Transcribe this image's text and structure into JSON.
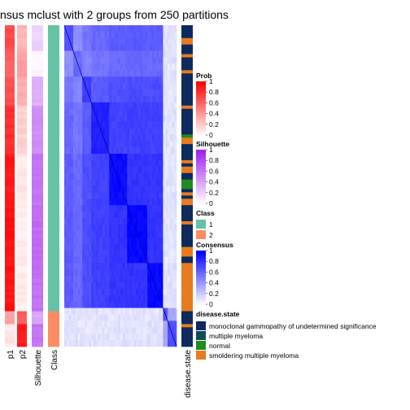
{
  "chart_data": {
    "type": "heatmap",
    "title": "nsus mclust with 2 groups from 250 partitions",
    "n_samples": 100,
    "class_sizes": [
      89,
      11
    ],
    "columns": [
      "p1",
      "p2",
      "Silhouette",
      "Class",
      "disease.state"
    ],
    "legends": {
      "prob": {
        "title": "Prob",
        "ticks": [
          "1",
          "0.8",
          "0.6",
          "0.4",
          "0.2",
          "0"
        ],
        "colors": [
          "#ff0000",
          "#ffffff"
        ]
      },
      "silhouette": {
        "title": "Silhouette",
        "ticks": [
          "1",
          "0.8",
          "0.6",
          "0.4",
          "0.2",
          "0"
        ],
        "colors": [
          "#a020f0",
          "#ffffff"
        ]
      },
      "class": {
        "title": "Class",
        "items": [
          {
            "label": "1",
            "color": "#66c2a5"
          },
          {
            "label": "2",
            "color": "#fc8d62"
          }
        ]
      },
      "consensus": {
        "title": "Consensus",
        "ticks": [
          "1",
          "0.8",
          "0.6",
          "0.4",
          "0.2",
          "0"
        ],
        "colors": [
          "#0000ff",
          "#ffffff"
        ]
      },
      "disease_state": {
        "title": "disease.state",
        "items": [
          {
            "label": "monoclonal gammopathy of undetermined significance",
            "color": "#0c2a5e"
          },
          {
            "label": "multiple myeloma",
            "color": "#114a5a"
          },
          {
            "label": "normal",
            "color": "#1e8c1e"
          },
          {
            "label": "smoldering multiple myeloma",
            "color": "#e87a1f"
          }
        ]
      }
    },
    "blocks": [
      {
        "start": 0,
        "end": 8,
        "p1": 0.7,
        "sil": 0.2
      },
      {
        "start": 8,
        "end": 16,
        "p1": 0.62,
        "sil": 0.05
      },
      {
        "start": 16,
        "end": 25,
        "p1": 0.68,
        "sil": 0.35
      },
      {
        "start": 25,
        "end": 40,
        "p1": 0.82,
        "sil": 0.5
      },
      {
        "start": 40,
        "end": 56,
        "p1": 0.9,
        "sil": 0.62
      },
      {
        "start": 56,
        "end": 75,
        "p1": 0.93,
        "sil": 0.66
      },
      {
        "start": 75,
        "end": 89,
        "p1": 0.92,
        "sil": 0.64
      },
      {
        "start": 89,
        "end": 93,
        "p1": 0.35,
        "sil": 0.4
      },
      {
        "start": 93,
        "end": 100,
        "p1": 0.1,
        "sil": 0.62
      }
    ],
    "disease_state_sequence": [
      0,
      0,
      0,
      0,
      3,
      3,
      0,
      0,
      0,
      3,
      0,
      0,
      0,
      0,
      3,
      0,
      0,
      0,
      0,
      0,
      0,
      0,
      0,
      0,
      0,
      3,
      0,
      0,
      0,
      0,
      0,
      0,
      0,
      0,
      2,
      3,
      3,
      0,
      0,
      0,
      0,
      0,
      3,
      0,
      3,
      3,
      0,
      0,
      2,
      2,
      2,
      0,
      3,
      0,
      3,
      3,
      0,
      0,
      0,
      0,
      0,
      3,
      0,
      0,
      0,
      0,
      0,
      0,
      0,
      3,
      3,
      3,
      0,
      0,
      3,
      3,
      3,
      3,
      3,
      3,
      3,
      3,
      3,
      3,
      3,
      3,
      3,
      3,
      3,
      0,
      0,
      0,
      0,
      3,
      0,
      0,
      0,
      0,
      0,
      0
    ]
  }
}
